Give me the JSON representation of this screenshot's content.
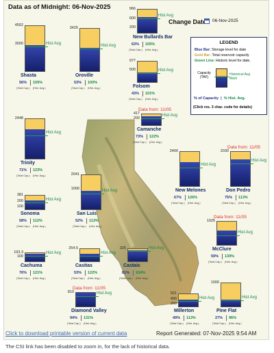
{
  "header": {
    "title": "Data as of Midnight: 06-Nov-2025"
  },
  "change_date": {
    "label": "Change Date:",
    "value": "06-Nov-2025"
  },
  "legend": {
    "title": "LEGEND",
    "blue_label": "Blue Bar:",
    "blue_text": "Storage level for date",
    "gold_label": "Gold Bar:",
    "gold_text": "Total reservoir capacity",
    "green_label": "Green Line:",
    "green_text": "Historic level for date.",
    "capacity_label": "Capacity (TAF)",
    "hist_avg_mark": "Historical Avg Mark",
    "pct_capacity": "% of Capacity",
    "pct_hist": "% Hist. Avg.",
    "click_text": "(Click res. 3 char. code for details)"
  },
  "colors": {
    "gold": "#f6cf60",
    "blue": "#1c2a7a",
    "green_line": "#2a9a4a",
    "data_from": "#e03030"
  },
  "total_cap_label": "(Total Cap.)",
  "hist_avg_label": "(Hist. Avg.)",
  "hist_avg_text": "Hist Avg",
  "reservoirs": [
    {
      "name": "Shasta",
      "capacity": "4552",
      "mid": "3000",
      "low": "",
      "pct_cap": "56%",
      "pct_hist": "105%",
      "data_from": "",
      "storage_frac": 0.56,
      "hist_frac": 0.54
    },
    {
      "name": "Oroville",
      "capacity": "3425",
      "mid": "",
      "low": "",
      "pct_cap": "53%",
      "pct_hist": "100%",
      "data_from": "",
      "storage_frac": 0.53,
      "hist_frac": 0.53
    },
    {
      "name": "New Bullards Bar",
      "capacity": "966",
      "mid": "600",
      "low": "200",
      "pct_cap": "63%",
      "pct_hist": "105%",
      "data_from": "",
      "storage_frac": 0.63,
      "hist_frac": 0.6
    },
    {
      "name": "Folsom",
      "capacity": "977",
      "mid": "500",
      "low": "",
      "pct_cap": "43%",
      "pct_hist": "101%",
      "data_from": "",
      "storage_frac": 0.43,
      "hist_frac": 0.43
    },
    {
      "name": "Trinity",
      "capacity": "2448",
      "mid": "",
      "low": "",
      "pct_cap": "71%",
      "pct_hist": "123%",
      "data_from": "",
      "storage_frac": 0.71,
      "hist_frac": 0.58
    },
    {
      "name": "Camanche",
      "capacity": "417",
      "mid": "200",
      "low": "",
      "pct_cap": "73%",
      "pct_hist": "122%",
      "data_from": "Data from: 11/05",
      "storage_frac": 0.73,
      "hist_frac": 0.6
    },
    {
      "name": "New Melones",
      "capacity": "2400",
      "mid": "",
      "low": "",
      "pct_cap": "67%",
      "pct_hist": "126%",
      "data_from": "",
      "storage_frac": 0.67,
      "hist_frac": 0.53
    },
    {
      "name": "Don Pedro",
      "capacity": "2030",
      "mid": "",
      "low": "",
      "pct_cap": "75%",
      "pct_hist": "113%",
      "data_from": "Data from: 11/05",
      "storage_frac": 0.75,
      "hist_frac": 0.66
    },
    {
      "name": "Sonoma",
      "capacity": "381",
      "mid": "200",
      "low": "100",
      "pct_cap": "58%",
      "pct_hist": "112%",
      "data_from": "",
      "storage_frac": 0.58,
      "hist_frac": 0.52
    },
    {
      "name": "San Luis",
      "capacity": "2041",
      "mid": "1000",
      "low": "",
      "pct_cap": "52%",
      "pct_hist": "113%",
      "data_from": "",
      "storage_frac": 0.52,
      "hist_frac": 0.46
    },
    {
      "name": "McClure",
      "capacity": "1025",
      "mid": "",
      "low": "",
      "pct_cap": "59%",
      "pct_hist": "139%",
      "data_from": "Data from: 11/05",
      "storage_frac": 0.59,
      "hist_frac": 0.42
    },
    {
      "name": "Cachuma",
      "capacity": "193.3",
      "mid": "100",
      "low": "",
      "pct_cap": "76%",
      "pct_hist": "121%",
      "data_from": "",
      "storage_frac": 0.76,
      "hist_frac": 0.63
    },
    {
      "name": "Casitas",
      "capacity": "254.5",
      "mid": "",
      "low": "",
      "pct_cap": "53%",
      "pct_hist": "122%",
      "data_from": "",
      "storage_frac": 0.53,
      "hist_frac": 0.43
    },
    {
      "name": "Castaic",
      "capacity": "325",
      "mid": "",
      "low": "",
      "pct_cap": "81%",
      "pct_hist": "104%",
      "data_from": "",
      "storage_frac": 0.81,
      "hist_frac": 0.78
    },
    {
      "name": "Diamond Valley",
      "capacity": "810",
      "mid": "",
      "low": "",
      "pct_cap": "94%",
      "pct_hist": "131%",
      "data_from": "Data from: 11/05",
      "storage_frac": 0.94,
      "hist_frac": 0.72
    },
    {
      "name": "Millerton",
      "capacity": "521",
      "mid": "400",
      "low": "200",
      "pct_cap": "49%",
      "pct_hist": "113%",
      "data_from": "",
      "storage_frac": 0.49,
      "hist_frac": 0.43
    },
    {
      "name": "Pine Flat",
      "capacity": "1000",
      "mid": "",
      "low": "",
      "pct_cap": "27%",
      "pct_hist": "96%",
      "data_from": "",
      "storage_frac": 0.27,
      "hist_frac": 0.28
    }
  ],
  "footer": {
    "download_link": "Click to download printable version of current data",
    "report": "Report Generated: 07-Nov-2025 9:54 AM",
    "note": "The CSI link has been disabled to zoom in, for the lack of historical data."
  }
}
